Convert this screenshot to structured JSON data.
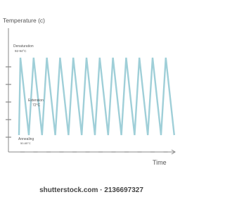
{
  "axis": {
    "y_label": "Temperature (c)",
    "x_label": "Time"
  },
  "labels": {
    "denaturation": "Denaturation",
    "denaturation_temp": "92-94°C",
    "extension": "Extension",
    "extension_temp": "72°C",
    "annealing": "Annealing",
    "annealing_temp": "50-65°C"
  },
  "watermark": "shutterstock.com · 2136697327"
}
